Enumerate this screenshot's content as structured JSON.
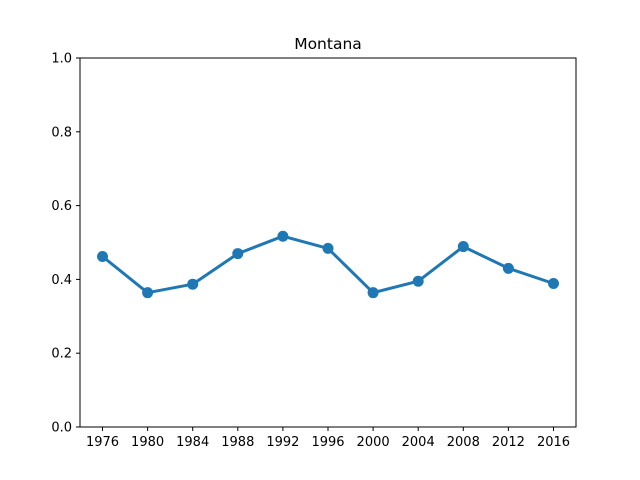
{
  "chart_data": {
    "type": "line",
    "title": "Montana",
    "xlabel": "",
    "ylabel": "",
    "categories": [
      "1976",
      "1980",
      "1984",
      "1988",
      "1992",
      "1996",
      "2000",
      "2004",
      "2008",
      "2012",
      "2016"
    ],
    "series": [
      {
        "values": [
          0.462,
          0.364,
          0.387,
          0.47,
          0.517,
          0.484,
          0.364,
          0.395,
          0.489,
          0.43,
          0.389
        ],
        "color": "#1f77b4"
      }
    ],
    "ylim": [
      0.0,
      1.0
    ],
    "yticks": [
      "0.0",
      "0.2",
      "0.4",
      "0.6",
      "0.8",
      "1.0"
    ],
    "grid": false,
    "legend": "none",
    "markers": "filled-circle"
  }
}
